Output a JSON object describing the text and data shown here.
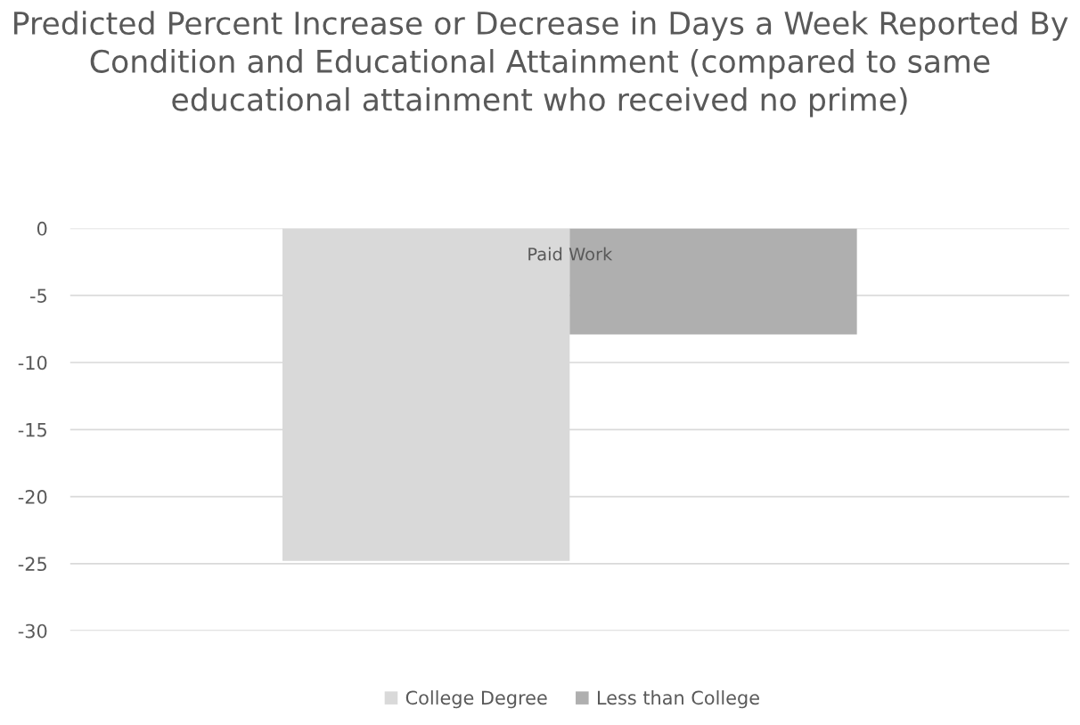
{
  "chart_data": {
    "type": "bar",
    "title": "Predicted Percent Increase or Decrease in Days a Week Reported By Condition and Educational Attainment (compared to same educational attainment who received no prime)",
    "categories": [
      "Paid Work"
    ],
    "series": [
      {
        "name": "College Degree",
        "color": "#d9d9d9",
        "values": [
          -24.8
        ]
      },
      {
        "name": "Less than College",
        "color": "#afafaf",
        "values": [
          -7.9
        ]
      }
    ],
    "ylim": [
      -30,
      0
    ],
    "yticks": [
      -30,
      -25,
      -20,
      -15,
      -10,
      -5,
      0
    ],
    "grid": "y",
    "legend": "bottom"
  }
}
